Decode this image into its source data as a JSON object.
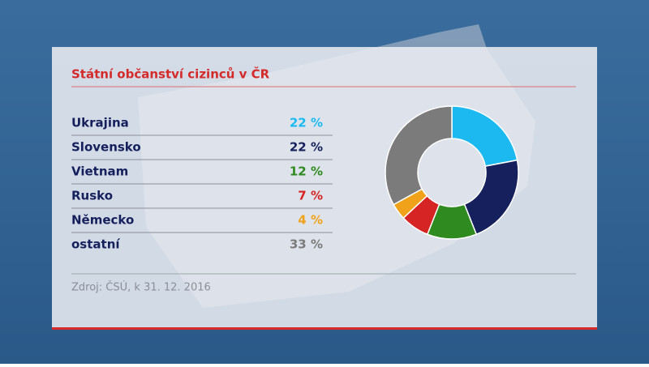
{
  "chart_data": {
    "type": "donut",
    "title": "Státní občanství cizinců v ČR",
    "categories": [
      "Ukrajina",
      "Slovensko",
      "Vietnam",
      "Rusko",
      "Německo",
      "ostatní"
    ],
    "values": [
      22,
      22,
      12,
      7,
      4,
      33
    ],
    "value_labels": [
      "22 %",
      "22 %",
      "12 %",
      "7 %",
      "4 %",
      "33 %"
    ],
    "colors": [
      "#1cb9f0",
      "#15205c",
      "#2f8a1f",
      "#d62424",
      "#f0a21a",
      "#7b7b7b"
    ],
    "source": "Zdroj: ČSÚ, k 31. 12. 2016"
  }
}
